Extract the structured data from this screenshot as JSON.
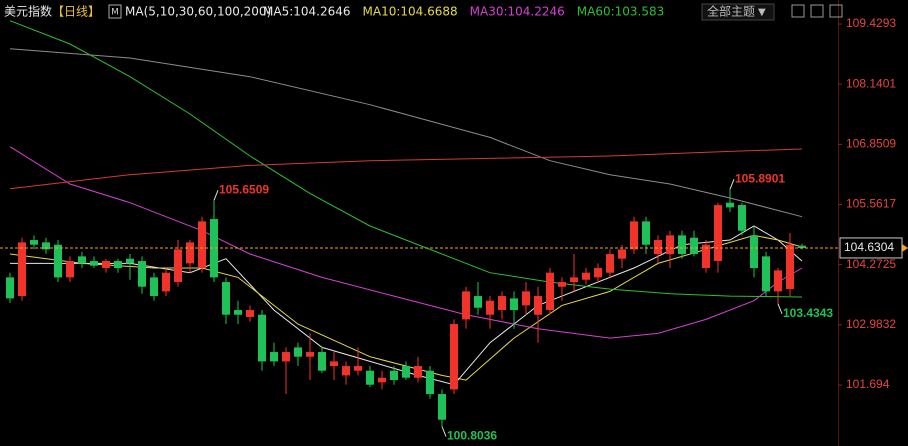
{
  "header": {
    "symbol": "美元指数",
    "period": "【日线】",
    "ma_label": "MA(5,10,30,60,100,200)",
    "theme_button": "全部主题"
  },
  "chart_data": {
    "type": "candlestick",
    "ylim": [
      100.387,
      109.9436
    ],
    "yticks": [
      101.694,
      102.9832,
      104.2725,
      105.5617,
      106.8509,
      108.1401,
      109.4293
    ],
    "up_color": "#f0342b",
    "down_color": "#1ec258",
    "open": [
      104.0,
      103.6,
      104.8,
      104.75,
      104.7,
      104.0,
      104.45,
      104.35,
      104.2,
      104.35,
      104.4,
      104.35,
      104.0,
      103.7,
      103.9,
      104.3,
      104.2,
      105.25,
      103.9,
      103.3,
      103.15,
      103.2,
      102.4,
      102.2,
      102.5,
      102.3,
      102.4,
      102.1,
      101.9,
      102.0,
      102.0,
      101.75,
      102.0,
      102.1,
      101.85,
      102.0,
      101.5,
      101.6,
      103.1,
      103.6,
      103.2,
      103.3,
      103.55,
      103.4,
      103.2,
      103.3,
      103.8,
      103.9,
      103.95,
      104.0,
      104.1,
      104.4,
      104.6,
      105.2,
      104.5,
      104.5,
      104.9,
      104.85,
      104.2,
      104.35,
      105.6,
      105.55,
      104.9,
      104.45,
      103.7,
      103.75,
      104.68
    ],
    "high": [
      104.1,
      104.85,
      104.9,
      104.85,
      104.8,
      104.45,
      104.55,
      104.45,
      104.4,
      104.4,
      104.5,
      104.45,
      104.1,
      104.2,
      104.8,
      104.8,
      105.3,
      105.6509,
      104.0,
      103.5,
      103.4,
      103.3,
      102.6,
      102.5,
      102.6,
      102.8,
      102.5,
      102.4,
      102.2,
      102.5,
      102.1,
      102.0,
      102.1,
      102.2,
      102.3,
      102.1,
      101.6,
      103.1,
      103.8,
      103.9,
      103.6,
      103.7,
      103.7,
      103.9,
      103.8,
      104.2,
      104.0,
      104.5,
      104.2,
      104.3,
      104.6,
      104.7,
      105.3,
      105.3,
      104.9,
      105.0,
      105.0,
      105.0,
      104.8,
      105.6,
      105.8901,
      105.6,
      105.1,
      104.55,
      104.2,
      104.95,
      104.72
    ],
    "low": [
      103.45,
      103.5,
      104.6,
      104.5,
      103.9,
      103.9,
      104.2,
      104.2,
      104.1,
      104.1,
      103.95,
      103.65,
      103.5,
      103.6,
      103.8,
      104.1,
      104.1,
      103.9,
      103.0,
      103.0,
      103.05,
      102.0,
      102.1,
      101.5,
      102.1,
      101.8,
      101.95,
      101.8,
      101.7,
      101.9,
      101.65,
      101.6,
      101.7,
      101.8,
      101.75,
      101.4,
      100.8036,
      101.5,
      102.9,
      103.2,
      102.9,
      103.1,
      102.9,
      103.2,
      102.6,
      103.2,
      103.5,
      103.7,
      103.85,
      103.9,
      104.0,
      104.2,
      104.5,
      104.5,
      104.3,
      104.2,
      104.4,
      104.45,
      104.1,
      104.1,
      105.4,
      104.9,
      104.0,
      103.6,
      103.4343,
      103.6,
      104.6
    ],
    "close": [
      103.55,
      104.75,
      104.7,
      104.6,
      104.0,
      104.35,
      104.3,
      104.25,
      104.35,
      104.2,
      104.3,
      103.8,
      103.6,
      104.1,
      104.6,
      104.75,
      105.2,
      104.0,
      103.2,
      103.2,
      103.3,
      102.2,
      102.2,
      102.4,
      102.3,
      102.4,
      102.0,
      102.2,
      102.1,
      102.1,
      101.7,
      101.85,
      101.8,
      101.85,
      102.1,
      101.5,
      100.95,
      103.0,
      103.7,
      103.35,
      103.5,
      103.6,
      103.3,
      103.7,
      103.6,
      104.1,
      103.9,
      104.0,
      104.1,
      104.2,
      104.5,
      104.6,
      105.2,
      104.7,
      104.8,
      104.9,
      104.5,
      104.5,
      104.7,
      105.55,
      105.5,
      105.0,
      104.2,
      103.7,
      104.15,
      104.7,
      104.6304
    ],
    "last_price": 104.6304,
    "last_price_color": "#f5a623",
    "annotations": [
      {
        "x": 17,
        "value": 105.6509,
        "color": "#f0342b"
      },
      {
        "x": 60,
        "value": 105.8901,
        "color": "#f0342b"
      },
      {
        "x": 36,
        "value": 100.8036,
        "color": "#1ec258"
      },
      {
        "x": 64,
        "value": 103.4343,
        "color": "#1ec258"
      }
    ],
    "series": [
      {
        "name": "MA5:104.2646",
        "color": "#e8e8e8",
        "x": [
          0,
          5,
          10,
          15,
          18,
          22,
          26,
          30,
          34,
          37,
          40,
          44,
          48,
          52,
          56,
          60,
          62,
          64,
          66
        ],
        "values": [
          104.3,
          104.3,
          104.3,
          104.1,
          104.4,
          103.3,
          102.5,
          102.2,
          101.9,
          101.7,
          102.6,
          103.4,
          103.8,
          104.2,
          104.7,
          104.8,
          105.1,
          104.8,
          104.35
        ]
      },
      {
        "name": "MA10:104.6688",
        "color": "#e6d84a",
        "x": [
          0,
          6,
          12,
          16,
          19,
          24,
          30,
          36,
          38,
          42,
          46,
          50,
          54,
          58,
          62,
          64,
          66
        ],
        "values": [
          104.5,
          104.3,
          104.2,
          104.2,
          104.0,
          103.0,
          102.3,
          101.9,
          101.8,
          102.7,
          103.4,
          103.7,
          104.3,
          104.6,
          104.9,
          104.8,
          104.65
        ]
      },
      {
        "name": "MA30:104.2246",
        "color": "#d63fd6",
        "x": [
          0,
          5,
          10,
          16,
          20,
          26,
          32,
          38,
          44,
          50,
          54,
          58,
          62,
          64,
          66
        ],
        "values": [
          106.8,
          106.0,
          105.6,
          105.0,
          104.5,
          104.0,
          103.6,
          103.2,
          102.9,
          102.7,
          102.8,
          103.1,
          103.5,
          103.9,
          104.2
        ]
      },
      {
        "name": "MA60:103.583",
        "color": "#2fbf2f",
        "x": [
          0,
          5,
          10,
          15,
          20,
          25,
          30,
          35,
          40,
          45,
          50,
          55,
          60,
          66
        ],
        "values": [
          109.5,
          109.0,
          108.3,
          107.5,
          106.6,
          105.8,
          105.1,
          104.6,
          104.1,
          103.9,
          103.75,
          103.65,
          103.6,
          103.58
        ]
      },
      {
        "color": "#8c8c8c",
        "x": [
          0,
          10,
          20,
          30,
          40,
          45,
          50,
          55,
          60,
          66
        ],
        "values": [
          108.9,
          108.7,
          108.3,
          107.7,
          107.0,
          106.5,
          106.2,
          106.0,
          105.7,
          105.3
        ]
      },
      {
        "color": "#d83a2e",
        "x": [
          0,
          10,
          20,
          30,
          40,
          50,
          60,
          66
        ],
        "values": [
          105.9,
          106.2,
          106.4,
          106.5,
          106.55,
          106.6,
          106.7,
          106.75
        ]
      }
    ]
  }
}
